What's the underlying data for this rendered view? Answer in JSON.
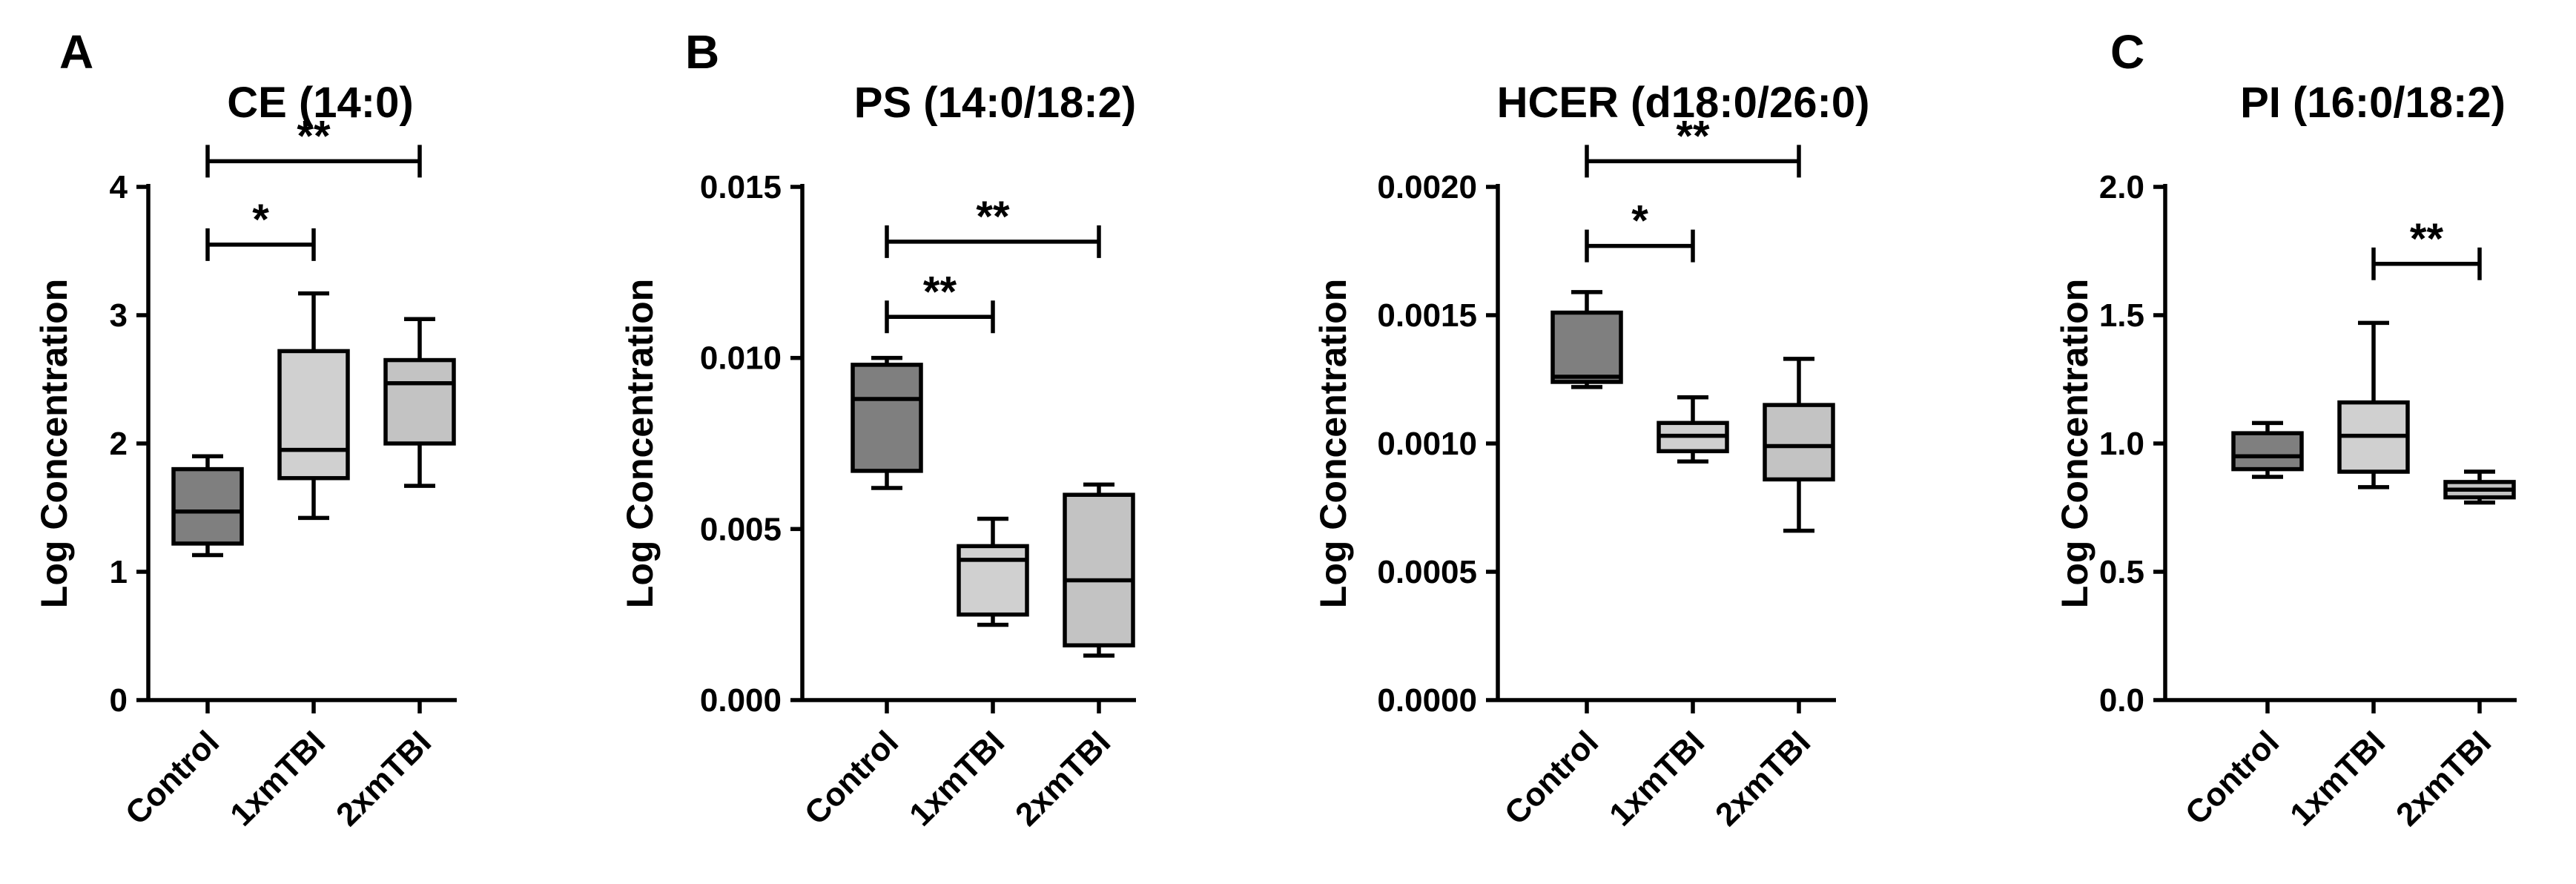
{
  "panel_letters": [
    "A",
    "B",
    "C"
  ],
  "colors": {
    "Control": "#7f7f7f",
    "1xmTBI": "#d0d0d0",
    "2xmTBI": "#c3c3c3",
    "stroke": "#000000"
  },
  "chart_data": [
    {
      "type": "box",
      "title": "CE (14:0)",
      "ylabel": "Log Concentration",
      "ylim": [
        0,
        4
      ],
      "yticks": [
        "0",
        "1",
        "2",
        "3",
        "4"
      ],
      "yticks_values": [
        0,
        1,
        2,
        3,
        4
      ],
      "categories": [
        "Control",
        "1xmTBI",
        "2xmTBI"
      ],
      "boxes": [
        {
          "min": 1.13,
          "q1": 1.22,
          "median": 1.47,
          "q3": 1.8,
          "max": 1.9
        },
        {
          "min": 1.42,
          "q1": 1.73,
          "median": 1.95,
          "q3": 2.72,
          "max": 3.17
        },
        {
          "min": 1.67,
          "q1": 2.0,
          "median": 2.47,
          "q3": 2.65,
          "max": 2.97
        }
      ],
      "significance": [
        {
          "from": 0,
          "to": 1,
          "label": "*",
          "y": 3.55
        },
        {
          "from": 0,
          "to": 2,
          "label": "**",
          "y": 4.2
        }
      ]
    },
    {
      "type": "box",
      "title": "PS (14:0/18:2)",
      "ylabel": "Log Concentration",
      "ylim": [
        0,
        0.015
      ],
      "yticks": [
        "0.000",
        "0.005",
        "0.010",
        "0.015"
      ],
      "yticks_values": [
        0,
        0.005,
        0.01,
        0.015
      ],
      "categories": [
        "Control",
        "1xmTBI",
        "2xmTBI"
      ],
      "boxes": [
        {
          "min": 0.0062,
          "q1": 0.0067,
          "median": 0.0088,
          "q3": 0.0098,
          "max": 0.01
        },
        {
          "min": 0.0022,
          "q1": 0.0025,
          "median": 0.0041,
          "q3": 0.0045,
          "max": 0.0053
        },
        {
          "min": 0.0013,
          "q1": 0.0016,
          "median": 0.0035,
          "q3": 0.006,
          "max": 0.0063
        }
      ],
      "significance": [
        {
          "from": 0,
          "to": 1,
          "label": "**",
          "y": 0.0112
        },
        {
          "from": 0,
          "to": 2,
          "label": "**",
          "y": 0.0134
        }
      ]
    },
    {
      "type": "box",
      "title": "HCER (d18:0/26:0)",
      "ylabel": "Log Concentration",
      "ylim": [
        0,
        0.002
      ],
      "yticks": [
        "0.0000",
        "0.0005",
        "0.0010",
        "0.0015",
        "0.0020"
      ],
      "yticks_values": [
        0,
        0.0005,
        0.001,
        0.0015,
        0.002
      ],
      "categories": [
        "Control",
        "1xmTBI",
        "2xmTBI"
      ],
      "boxes": [
        {
          "min": 0.00122,
          "q1": 0.00124,
          "median": 0.00126,
          "q3": 0.00151,
          "max": 0.00159
        },
        {
          "min": 0.00093,
          "q1": 0.00097,
          "median": 0.00103,
          "q3": 0.00108,
          "max": 0.00118
        },
        {
          "min": 0.00066,
          "q1": 0.00086,
          "median": 0.00099,
          "q3": 0.00115,
          "max": 0.00133
        }
      ],
      "significance": [
        {
          "from": 0,
          "to": 1,
          "label": "*",
          "y": 0.00177
        },
        {
          "from": 0,
          "to": 2,
          "label": "**",
          "y": 0.0021
        }
      ]
    },
    {
      "type": "box",
      "title": "PI (16:0/18:2)",
      "ylabel": "Log Concentration",
      "ylim": [
        0,
        2.0
      ],
      "yticks": [
        "0.0",
        "0.5",
        "1.0",
        "1.5",
        "2.0"
      ],
      "yticks_values": [
        0,
        0.5,
        1.0,
        1.5,
        2.0
      ],
      "categories": [
        "Control",
        "1xmTBI",
        "2xmTBI"
      ],
      "boxes": [
        {
          "min": 0.87,
          "q1": 0.9,
          "median": 0.95,
          "q3": 1.04,
          "max": 1.08
        },
        {
          "min": 0.83,
          "q1": 0.89,
          "median": 1.03,
          "q3": 1.16,
          "max": 1.47
        },
        {
          "min": 0.77,
          "q1": 0.79,
          "median": 0.82,
          "q3": 0.85,
          "max": 0.89
        }
      ],
      "significance": [
        {
          "from": 1,
          "to": 2,
          "label": "**",
          "y": 1.7
        }
      ]
    }
  ]
}
